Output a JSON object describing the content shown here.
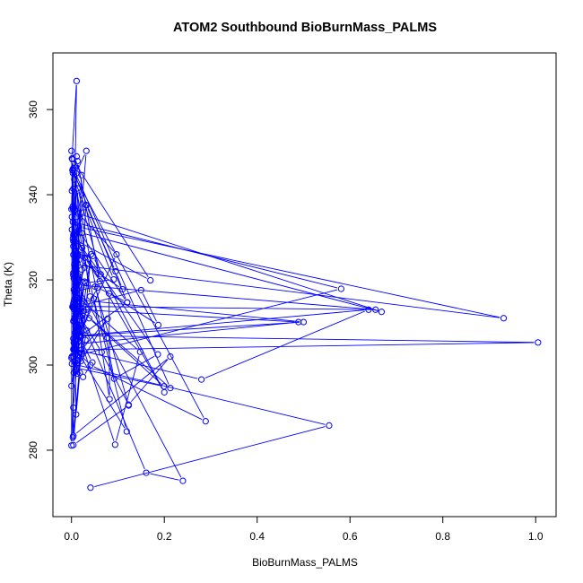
{
  "chart_data": {
    "type": "line",
    "title": "ATOM2 Southbound BioBurnMass_PALMS",
    "xlabel": "BioBurnMass_PALMS",
    "ylabel": "Theta (K)",
    "xlim": [
      -0.04,
      1.044
    ],
    "ylim": [
      264.4,
      373.3
    ],
    "xticks": [
      {
        "value": 0.0,
        "label": "0.0"
      },
      {
        "value": 0.2,
        "label": "0.2"
      },
      {
        "value": 0.4,
        "label": "0.4"
      },
      {
        "value": 0.6,
        "label": "0.6"
      },
      {
        "value": 0.8,
        "label": "0.8"
      },
      {
        "value": 1.0,
        "label": "1.0"
      }
    ],
    "yticks": [
      {
        "value": 280,
        "label": "280"
      },
      {
        "value": 300,
        "label": "300"
      },
      {
        "value": 320,
        "label": "320"
      },
      {
        "value": 340,
        "label": "340"
      },
      {
        "value": 360,
        "label": "360"
      }
    ],
    "grid": false,
    "color": "#0000ff",
    "series": [
      {
        "x": [
          0.041,
          0.555,
          0.001,
          0.012,
          0.03,
          0.003,
          0.024,
          0.005,
          0.28,
          0.64,
          0.018,
          0.5,
          0.006,
          0.022,
          0.014,
          0.013,
          0.097,
          0.004,
          0.007,
          0.032,
          0.056,
          0.12,
          0.016,
          0.042,
          0.02,
          0.033,
          0.004,
          0.581,
          0.003,
          0.016,
          0.008,
          0.038,
          0.199,
          0.011,
          0.025,
          0.045,
          0.016,
          1.005,
          0.022,
          0.078,
          0.005,
          0.0,
          0.018,
          0.004,
          0.003,
          0.021,
          0.012,
          0.0,
          0.048,
          0.082,
          0.081,
          0.187,
          0.15,
          0.005,
          0.004,
          0.012,
          0.007,
          0.013,
          0.006,
          0.931,
          0.016,
          0.023,
          0.005,
          0.077,
          0.24,
          0.161,
          0.019,
          0.012,
          0.007,
          0.051,
          0.123,
          0.004,
          0.027,
          0.011,
          0.489,
          0.005,
          0.015,
          0.065,
          0.123,
          0.213,
          0.004,
          0.002,
          0.018,
          0.01,
          0.006,
          0.094,
          0.148,
          0.017,
          0.002,
          0.028,
          0.003,
          0.032,
          0.01,
          0.01,
          0.016,
          0.021,
          0.024,
          0.005,
          0.01,
          0.004,
          0.006,
          0.009,
          0.001,
          0.009,
          0.0,
          0.001,
          0.0,
          0.119,
          0.01,
          0.004,
          0.655,
          0.011,
          0.012,
          0.046,
          0.2,
          0.005,
          0.013,
          0.031,
          0.004,
          0.063,
          0.013,
          0.018,
          0.008,
          0.028,
          0.005,
          0.004,
          0.213,
          0.004,
          0.007,
          0.014,
          0.004,
          0.004,
          0.011,
          0.001,
          0.17,
          0.003,
          0.009,
          0.001,
          0.004,
          0.004,
          0.006,
          0.011,
          0.032,
          0.095,
          0.11,
          0.016,
          0.011,
          0.004,
          0.022,
          0.0,
          0.007,
          0.01,
          0.015,
          0.12,
          0.003,
          0.008,
          0.003,
          0.001,
          0.004,
          0.013,
          0.061,
          0.029,
          0.04,
          0.002,
          0.006,
          0.014,
          0.668,
          0.022,
          0.004,
          0.003,
          0.014,
          0.005,
          0.004,
          0.186,
          0.092,
          0.006,
          0.091,
          0.031,
          0.016,
          0.009,
          0.01,
          0.041,
          0.289,
          0.003,
          0.011
        ],
        "y": [
          271.2,
          285.8,
          300.3,
          298.0,
          305.9,
          313.6,
          319.4,
          303.8,
          296.6,
          313.0,
          306.9,
          310.1,
          315.4,
          322.4,
          325.6,
          306.1,
          326.0,
          336.8,
          303.5,
          313.0,
          318.2,
          314.7,
          306.6,
          326.0,
          300.9,
          308.1,
          302.0,
          317.9,
          333.6,
          320.8,
          307.6,
          311.0,
          295.0,
          299.3,
          297.2,
          300.6,
          306.9,
          305.3,
          303.6,
          310.9,
          298.2,
          295.1,
          308.5,
          290.0,
          283.0,
          302.6,
          301.2,
          301.7,
          315.6,
          292.0,
          316.8,
          309.4,
          317.6,
          313.5,
          313.6,
          316.9,
          311.1,
          326.2,
          323.6,
          311.0,
          332.4,
          327.5,
          320.3,
          306.4,
          272.8,
          274.7,
          311.4,
          319.0,
          317.2,
          318.4,
          290.5,
          281.2,
          312.7,
          304.9,
          310.1,
          313.1,
          312.0,
          303.0,
          290.7,
          302.0,
          283.4,
          345.8,
          298.2,
          288.4,
          310.3,
          281.3,
          303.1,
          315.6,
          313.7,
          322.9,
          313.6,
          350.3,
          345.0,
          324.4,
          319.9,
          309.3,
          315.0,
          317.7,
          328.0,
          321.6,
          315.3,
          322.1,
          334.8,
          309.0,
          281.1,
          340.9,
          336.6,
          284.4,
          303.7,
          313.8,
          313.0,
          318.8,
          325.5,
          325.6,
          293.6,
          330.6,
          301.0,
          337.6,
          327.9,
          321.3,
          341.5,
          308.0,
          302.5,
          319.6,
          305.2,
          346.2,
          294.6,
          314.4,
          323.0,
          313.8,
          303.7,
          321.1,
          366.7,
          348.5,
          319.9,
          329.7,
          298.9,
          302.0,
          310.3,
          325.9,
          313.8,
          334.8,
          337.5,
          322.0,
          317.8,
          324.7,
          313.7,
          306.2,
          344.6,
          350.3,
          300.7,
          306.1,
          331.6,
          314.7,
          345.7,
          326.8,
          336.7,
          331.8,
          329.1,
          347.9,
          319.7,
          325.2,
          316.1,
          348.3,
          310.9,
          335.6,
          312.5,
          331.0,
          341.4,
          337.3,
          320.4,
          314.9,
          330.5,
          302.5,
          296.8,
          343.6,
          320.1,
          319.3,
          314.7,
          298.5,
          303.4,
          300.0,
          286.8,
          345.1,
          349.0
        ]
      }
    ]
  }
}
